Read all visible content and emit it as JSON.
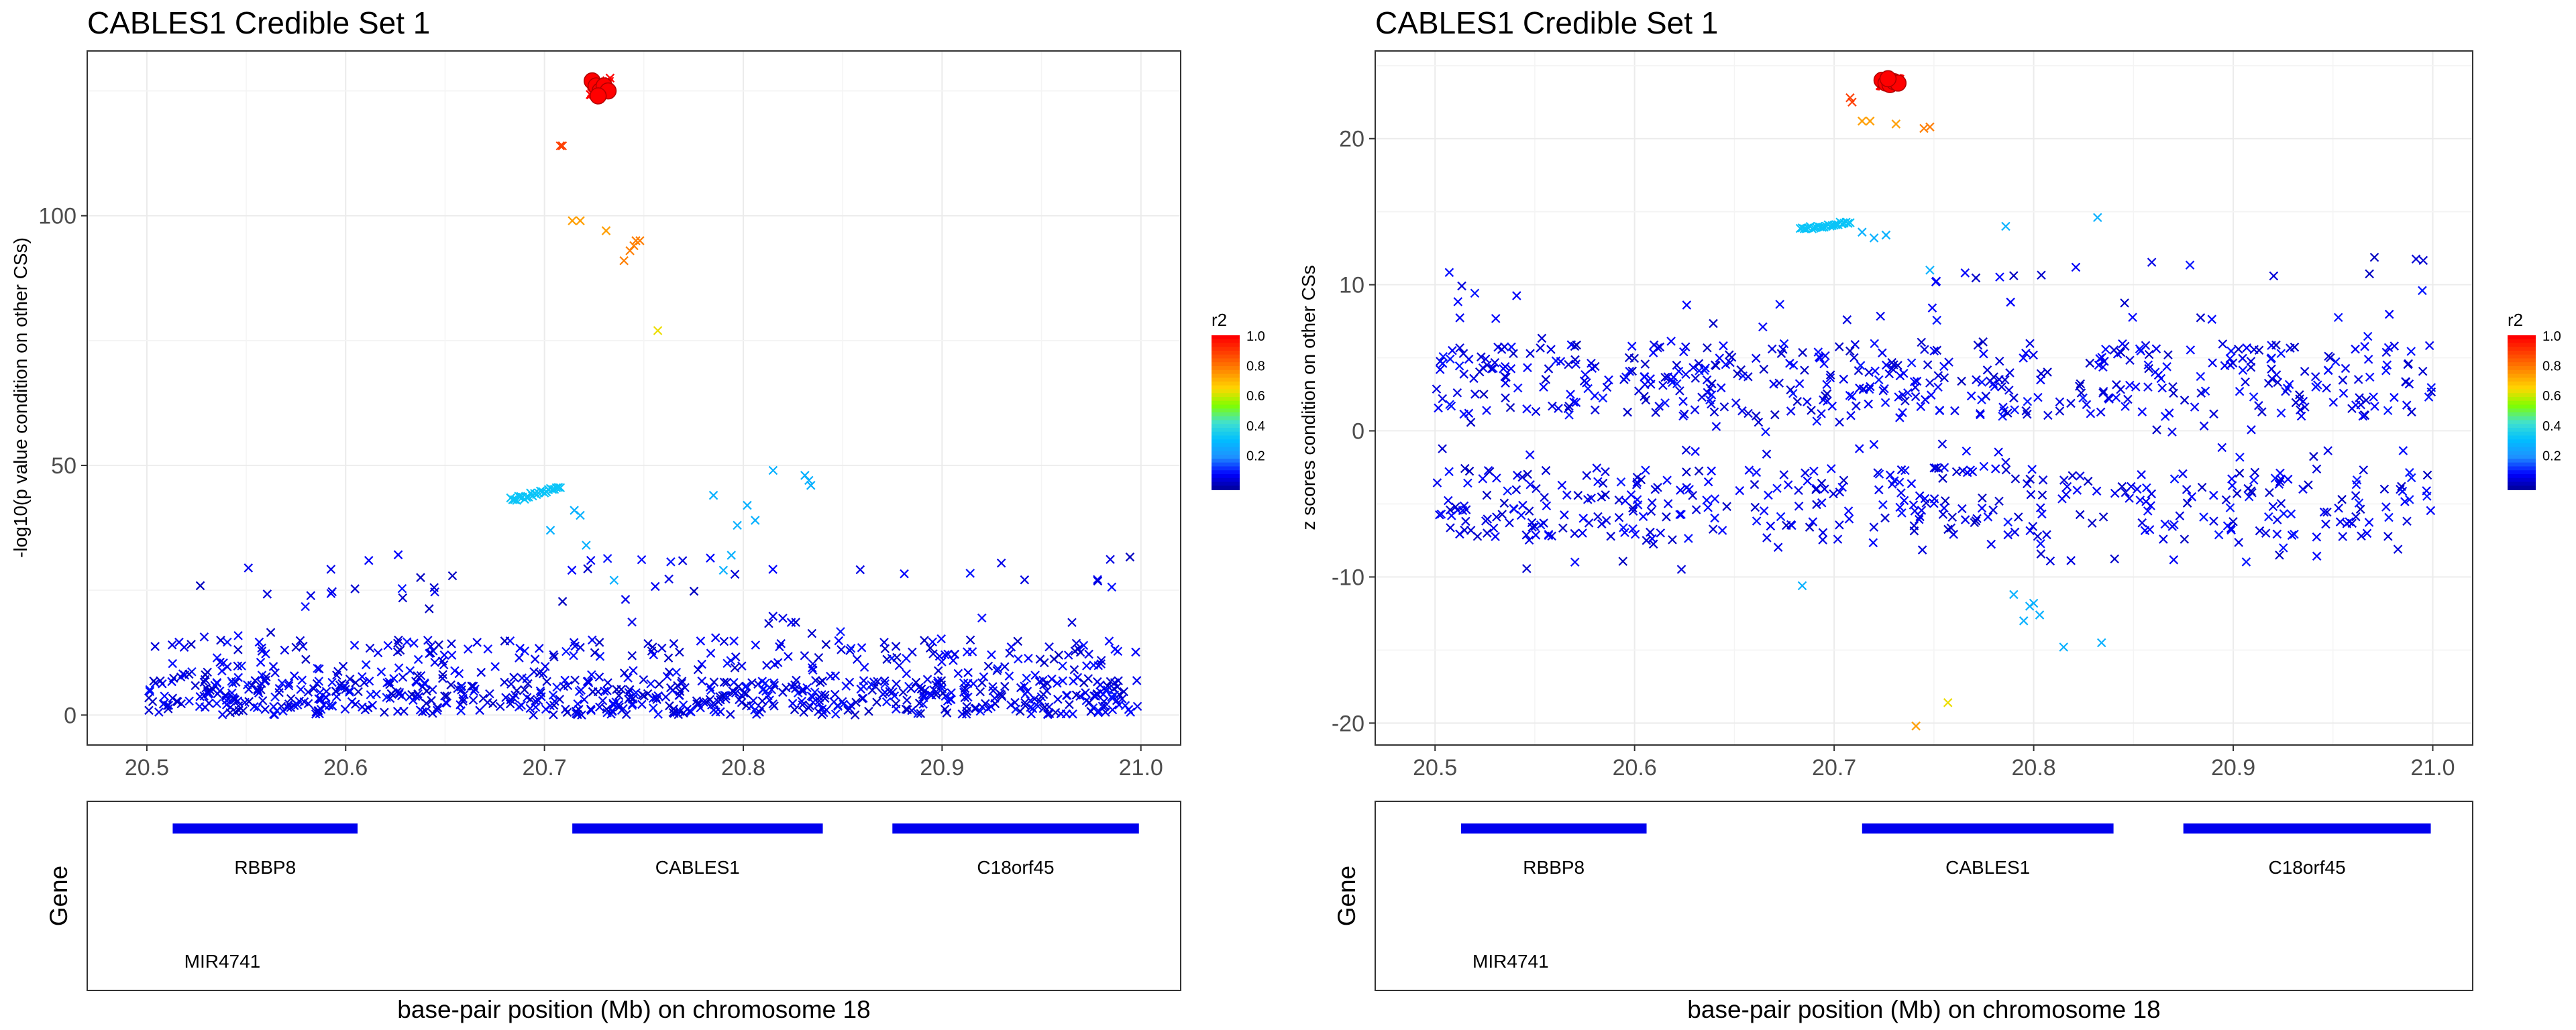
{
  "figure": {
    "xlabel": "base-pair position (Mb) on chromosome 18",
    "gene_track_label": "Gene",
    "legend_title": "r2",
    "legend_ticks": [
      "1.0",
      "0.8",
      "0.6",
      "0.4",
      "0.2"
    ],
    "colorscale": [
      "#00008b",
      "#0000ff",
      "#1e90ff",
      "#00bfff",
      "#40e0d0",
      "#7fff00",
      "#ffd700",
      "#ff8c00",
      "#ff4500",
      "#ff0000"
    ],
    "lead_color": "#ff0000",
    "gene_color": "#0000ee"
  },
  "chart_data": [
    {
      "type": "scatter",
      "title": "CABLES1 Credible Set 1",
      "xlabel": "base-pair position (Mb) on chromosome 18",
      "ylabel": "-log10(p value condition on other CSs)",
      "xlim": [
        20.47,
        21.02
      ],
      "ylim": [
        -6,
        133
      ],
      "xticks": [
        "20.5",
        "20.6",
        "20.7",
        "20.8",
        "20.9",
        "21.0"
      ],
      "yticks": [
        "0",
        "50",
        "100"
      ],
      "grid": true,
      "legend": "right",
      "highlights": [
        {
          "x": 20.708,
          "y": 114,
          "r2": 0.9
        },
        {
          "x": 20.709,
          "y": 114,
          "r2": 0.9
        },
        {
          "x": 20.714,
          "y": 99,
          "r2": 0.75
        },
        {
          "x": 20.718,
          "y": 99,
          "r2": 0.75
        },
        {
          "x": 20.731,
          "y": 97,
          "r2": 0.75
        },
        {
          "x": 20.74,
          "y": 91,
          "r2": 0.8
        },
        {
          "x": 20.743,
          "y": 93,
          "r2": 0.8
        },
        {
          "x": 20.745,
          "y": 94,
          "r2": 0.8
        },
        {
          "x": 20.746,
          "y": 95,
          "r2": 0.8
        },
        {
          "x": 20.748,
          "y": 95,
          "r2": 0.8
        },
        {
          "x": 20.757,
          "y": 77,
          "r2": 0.65
        },
        {
          "x": 20.715,
          "y": 41,
          "r2": 0.3
        },
        {
          "x": 20.718,
          "y": 40,
          "r2": 0.3
        },
        {
          "x": 20.721,
          "y": 34,
          "r2": 0.3
        },
        {
          "x": 20.735,
          "y": 27,
          "r2": 0.3
        },
        {
          "x": 20.703,
          "y": 37,
          "r2": 0.3
        },
        {
          "x": 20.785,
          "y": 44,
          "r2": 0.3
        },
        {
          "x": 20.79,
          "y": 29,
          "r2": 0.3
        },
        {
          "x": 20.794,
          "y": 32,
          "r2": 0.3
        },
        {
          "x": 20.797,
          "y": 38,
          "r2": 0.3
        },
        {
          "x": 20.802,
          "y": 42,
          "r2": 0.3
        },
        {
          "x": 20.806,
          "y": 39,
          "r2": 0.3
        },
        {
          "x": 20.815,
          "y": 49,
          "r2": 0.3
        },
        {
          "x": 20.831,
          "y": 48,
          "r2": 0.3
        },
        {
          "x": 20.833,
          "y": 47,
          "r2": 0.3
        },
        {
          "x": 20.834,
          "y": 46,
          "r2": 0.3
        }
      ],
      "bands": [
        {
          "x0": 20.683,
          "x1": 20.708,
          "y0": 43,
          "y1": 45.5,
          "n": 26,
          "r2": 0.35
        },
        {
          "x0": 20.723,
          "x1": 20.733,
          "y0": 124,
          "y1": 127,
          "n": 32,
          "r2": 1.0
        }
      ],
      "lead_points": [
        {
          "x": 20.724,
          "y": 127
        },
        {
          "x": 20.726,
          "y": 126
        },
        {
          "x": 20.728,
          "y": 125
        },
        {
          "x": 20.73,
          "y": 126
        },
        {
          "x": 20.732,
          "y": 125
        },
        {
          "x": 20.727,
          "y": 124
        }
      ],
      "background_generator": {
        "n": 900,
        "x_range": [
          20.5,
          21.0
        ],
        "y_range": [
          0,
          33
        ],
        "r2": 0.05
      }
    },
    {
      "type": "scatter",
      "title": "CABLES1 Credible Set 1",
      "xlabel": "base-pair position (Mb) on chromosome 18",
      "ylabel": "z scores condition on other CSs",
      "xlim": [
        20.47,
        21.02
      ],
      "ylim": [
        -21.5,
        26
      ],
      "xticks": [
        "20.5",
        "20.6",
        "20.7",
        "20.8",
        "20.9",
        "21.0"
      ],
      "yticks": [
        "20",
        "10",
        "0",
        "-10",
        "-20"
      ],
      "grid": true,
      "legend": "right",
      "highlights": [
        {
          "x": 20.708,
          "y": 22.8,
          "r2": 0.9
        },
        {
          "x": 20.709,
          "y": 22.5,
          "r2": 0.9
        },
        {
          "x": 20.714,
          "y": 21.2,
          "r2": 0.75
        },
        {
          "x": 20.718,
          "y": 21.2,
          "r2": 0.75
        },
        {
          "x": 20.731,
          "y": 21.0,
          "r2": 0.75
        },
        {
          "x": 20.745,
          "y": 20.7,
          "r2": 0.8
        },
        {
          "x": 20.748,
          "y": 20.8,
          "r2": 0.8
        },
        {
          "x": 20.741,
          "y": -20.2,
          "r2": 0.75
        },
        {
          "x": 20.757,
          "y": -18.6,
          "r2": 0.65
        },
        {
          "x": 20.714,
          "y": 13.6,
          "r2": 0.3
        },
        {
          "x": 20.72,
          "y": 13.2,
          "r2": 0.3
        },
        {
          "x": 20.726,
          "y": 13.4,
          "r2": 0.3
        },
        {
          "x": 20.748,
          "y": 11.0,
          "r2": 0.3
        },
        {
          "x": 20.786,
          "y": 14.0,
          "r2": 0.3
        },
        {
          "x": 20.832,
          "y": 14.6,
          "r2": 0.3
        },
        {
          "x": 20.684,
          "y": -10.6,
          "r2": 0.3
        },
        {
          "x": 20.79,
          "y": -11.2,
          "r2": 0.3
        },
        {
          "x": 20.795,
          "y": -13.0,
          "r2": 0.3
        },
        {
          "x": 20.798,
          "y": -12.0,
          "r2": 0.3
        },
        {
          "x": 20.8,
          "y": -11.8,
          "r2": 0.3
        },
        {
          "x": 20.803,
          "y": -12.6,
          "r2": 0.3
        },
        {
          "x": 20.815,
          "y": -14.8,
          "r2": 0.3
        },
        {
          "x": 20.834,
          "y": -14.5,
          "r2": 0.3
        }
      ],
      "bands": [
        {
          "x0": 20.683,
          "x1": 20.708,
          "y0": 13.8,
          "y1": 14.3,
          "n": 26,
          "r2": 0.35
        },
        {
          "x0": 20.723,
          "x1": 20.733,
          "y0": 23.6,
          "y1": 24.1,
          "n": 32,
          "r2": 1.0
        }
      ],
      "lead_points": [
        {
          "x": 20.724,
          "y": 24.0
        },
        {
          "x": 20.726,
          "y": 23.8
        },
        {
          "x": 20.728,
          "y": 23.7
        },
        {
          "x": 20.73,
          "y": 23.9
        },
        {
          "x": 20.732,
          "y": 23.8
        },
        {
          "x": 20.727,
          "y": 24.1
        }
      ],
      "background_generator": {
        "n": 900,
        "x_range": [
          20.5,
          21.0
        ],
        "y_range": [
          -9.5,
          12
        ],
        "r2": 0.05
      }
    }
  ],
  "genes": [
    {
      "name": "RBBP8",
      "start": 20.513,
      "end": 20.606,
      "row": 0
    },
    {
      "name": "CABLES1",
      "start": 20.714,
      "end": 20.84,
      "row": 0
    },
    {
      "name": "C18orf45",
      "start": 20.875,
      "end": 20.999,
      "row": 0
    },
    {
      "name": "MIR4741",
      "start": 20.507,
      "end": 20.507,
      "row": 1
    }
  ]
}
